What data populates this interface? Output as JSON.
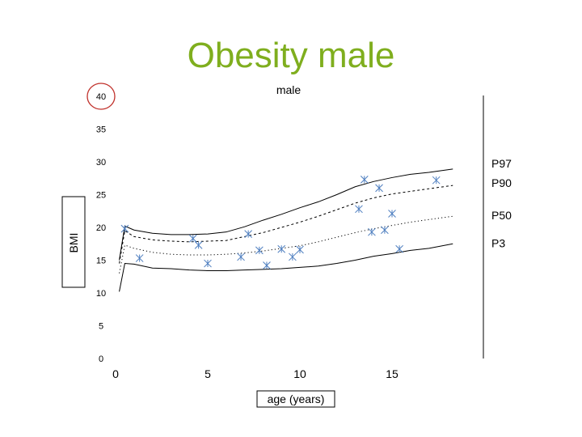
{
  "slide": {
    "title": "Obesity male"
  },
  "chart_data": {
    "type": "scatter",
    "title": "male",
    "xlabel": "age (years)",
    "ylabel": "BMI",
    "xlim": [
      0,
      18.5
    ],
    "ylim": [
      0,
      40
    ],
    "x_ticks": [
      0,
      5,
      10,
      15
    ],
    "y_ticks": [
      0,
      5,
      10,
      15,
      20,
      25,
      30,
      35,
      40
    ],
    "highlighted_tick": 40,
    "colors": {
      "marker": "#4f7fc0",
      "highlight": "#c0302a",
      "title": "#7fae1e",
      "curve": "#000000"
    },
    "series": [
      {
        "name": "P97",
        "style": "solid",
        "x": [
          0.2,
          0.5,
          1,
          2,
          3,
          4,
          5,
          6,
          7,
          8,
          9,
          10,
          11,
          12,
          13,
          14,
          15,
          16,
          17,
          18.3
        ],
        "values": [
          15,
          20.2,
          19.6,
          19.1,
          18.9,
          18.9,
          19,
          19.3,
          20.1,
          21.1,
          22,
          23,
          23.9,
          25,
          26.2,
          27,
          27.6,
          28.1,
          28.4,
          28.9
        ]
      },
      {
        "name": "P90",
        "style": "dashed",
        "x": [
          0.2,
          0.5,
          1,
          2,
          3,
          4,
          5,
          6,
          7,
          8,
          9,
          10,
          11,
          12,
          13,
          14,
          15,
          16,
          17,
          18.3
        ],
        "values": [
          14.5,
          19.5,
          18.6,
          18.1,
          17.9,
          17.8,
          17.9,
          18,
          18.6,
          19.2,
          20,
          20.8,
          21.7,
          22.7,
          23.7,
          24.5,
          25.1,
          25.5,
          25.9,
          26.4
        ]
      },
      {
        "name": "P50",
        "style": "dotted",
        "x": [
          0.2,
          0.5,
          1,
          2,
          3,
          4,
          5,
          6,
          7,
          8,
          9,
          10,
          11,
          12,
          13,
          14,
          15,
          16,
          17,
          18.3
        ],
        "values": [
          13,
          17.3,
          16.8,
          16.2,
          15.9,
          15.8,
          15.8,
          15.9,
          16.1,
          16.4,
          16.8,
          17.2,
          17.8,
          18.5,
          19.2,
          19.8,
          20.3,
          20.8,
          21.2,
          21.7
        ]
      },
      {
        "name": "P3",
        "style": "solid",
        "x": [
          0.2,
          0.5,
          1,
          2,
          3,
          4,
          5,
          6,
          7,
          8,
          9,
          10,
          11,
          12,
          13,
          14,
          15,
          16,
          17,
          18.3
        ],
        "values": [
          10.2,
          14.5,
          14.4,
          13.8,
          13.7,
          13.5,
          13.4,
          13.4,
          13.5,
          13.6,
          13.7,
          13.9,
          14.1,
          14.5,
          15,
          15.6,
          16,
          16.5,
          16.8,
          17.5
        ]
      },
      {
        "name": "",
        "type": "points",
        "x": [
          0.5,
          1.3,
          4.2,
          4.5,
          5,
          6.8,
          7.2,
          7.8,
          8.2,
          9,
          9.6,
          10,
          13.2,
          13.5,
          13.9,
          14.3,
          14.6,
          15,
          15.4,
          17.4
        ],
        "values": [
          19.8,
          15.3,
          18.3,
          17.3,
          14.5,
          15.5,
          19,
          16.5,
          14.2,
          16.7,
          15.5,
          16.6,
          22.8,
          27.3,
          19.3,
          26,
          19.6,
          22.1,
          16.7,
          27.2
        ]
      }
    ]
  }
}
